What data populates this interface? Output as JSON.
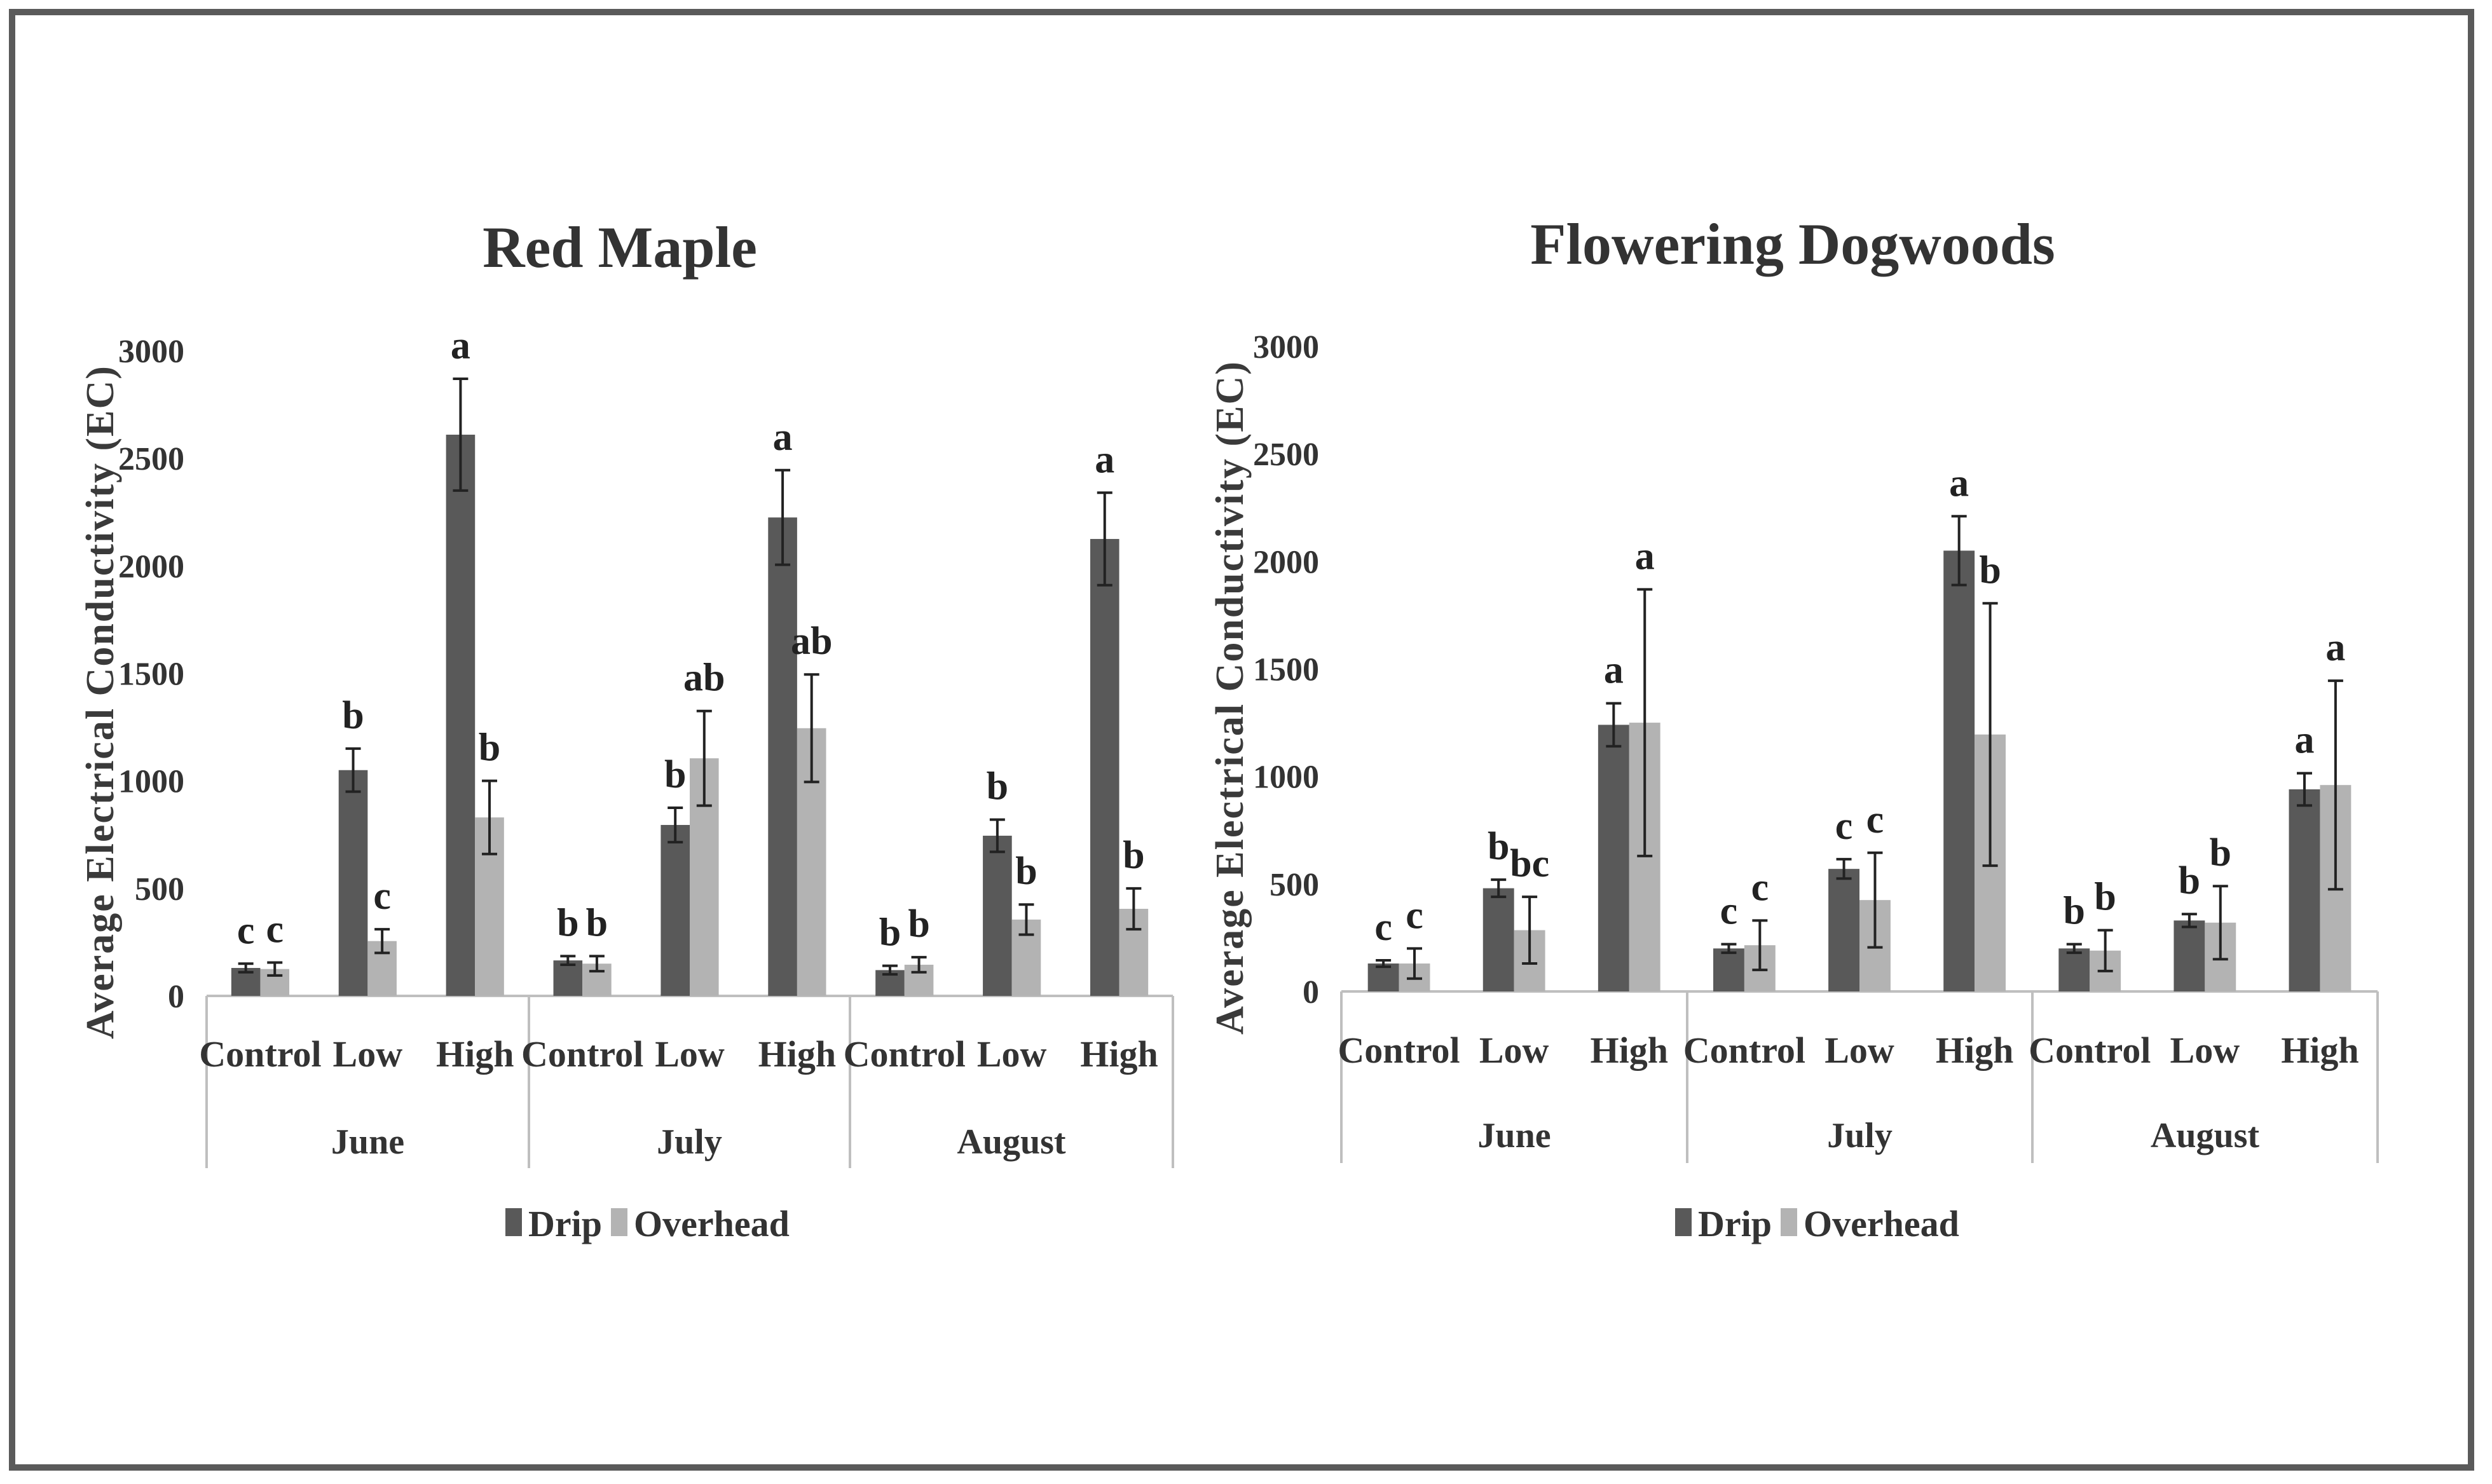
{
  "chart_data": [
    {
      "type": "bar",
      "title": "Red Maple",
      "ylabel": "Average Electrical Conductivity (EC)",
      "xlabel": "",
      "ylim": [
        0,
        3000
      ],
      "yticks": [
        0,
        500,
        1000,
        1500,
        2000,
        2500,
        3000
      ],
      "groups": [
        "June",
        "July",
        "August"
      ],
      "categories": [
        "Control",
        "Low",
        "High",
        "Control",
        "Low",
        "High",
        "Control",
        "Low",
        "High"
      ],
      "legend": "bottom-center",
      "series": [
        {
          "name": "Drip",
          "color": "#595959",
          "values": [
            130,
            1050,
            2610,
            165,
            795,
            2225,
            120,
            745,
            2125
          ],
          "errors": [
            20,
            100,
            260,
            20,
            80,
            220,
            20,
            75,
            215
          ],
          "letters": [
            "c",
            "b",
            "a",
            "b",
            "b",
            "a",
            "b",
            "b",
            "a"
          ]
        },
        {
          "name": "Overhead",
          "color": "#b3b3b3",
          "values": [
            125,
            255,
            830,
            150,
            1105,
            1245,
            145,
            355,
            405
          ],
          "errors": [
            30,
            55,
            170,
            35,
            220,
            250,
            35,
            70,
            95
          ],
          "letters": [
            "c",
            "c",
            "b",
            "b",
            "ab",
            "ab",
            "b",
            "b",
            "b"
          ]
        }
      ]
    },
    {
      "type": "bar",
      "title": "Flowering Dogwoods",
      "ylabel": "Average Electrical Conductivity (EC)",
      "xlabel": "",
      "ylim": [
        0,
        3000
      ],
      "yticks": [
        0,
        500,
        1000,
        1500,
        2000,
        2500,
        3000
      ],
      "groups": [
        "June",
        "July",
        "August"
      ],
      "categories": [
        "Control",
        "Low",
        "High",
        "Control",
        "Low",
        "High",
        "Control",
        "Low",
        "High"
      ],
      "legend": "bottom-center",
      "series": [
        {
          "name": "Drip",
          "color": "#595959",
          "values": [
            130,
            480,
            1240,
            200,
            570,
            2050,
            200,
            330,
            940
          ],
          "errors": [
            15,
            40,
            100,
            20,
            45,
            160,
            20,
            30,
            75
          ],
          "letters": [
            "c",
            "b",
            "a",
            "c",
            "c",
            "a",
            "b",
            "b",
            "a"
          ]
        },
        {
          "name": "Overhead",
          "color": "#b3b3b3",
          "values": [
            130,
            285,
            1250,
            215,
            425,
            1195,
            190,
            320,
            960
          ],
          "errors": [
            70,
            155,
            620,
            115,
            220,
            610,
            95,
            170,
            485
          ],
          "letters": [
            "c",
            "bc",
            "a",
            "c",
            "c",
            "b",
            "b",
            "b",
            "a"
          ]
        }
      ]
    }
  ]
}
